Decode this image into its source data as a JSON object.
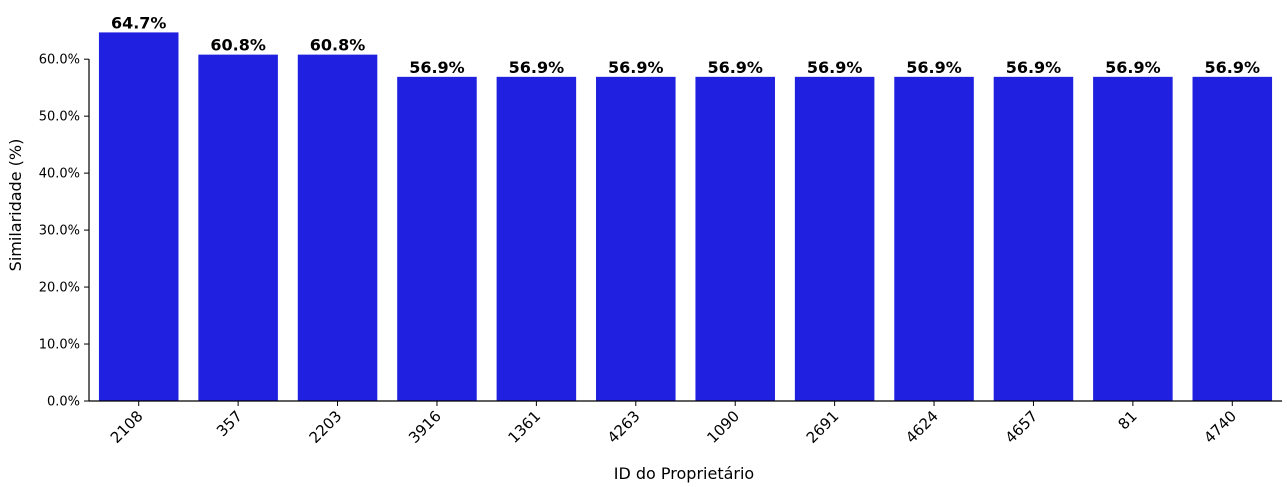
{
  "chart_data": {
    "type": "bar",
    "categories": [
      "2108",
      "357",
      "2203",
      "3916",
      "1361",
      "4263",
      "1090",
      "2691",
      "4624",
      "4657",
      "81",
      "4740"
    ],
    "values": [
      64.7,
      60.8,
      60.8,
      56.9,
      56.9,
      56.9,
      56.9,
      56.9,
      56.9,
      56.9,
      56.9,
      56.9
    ],
    "data_labels": [
      "64.7%",
      "60.8%",
      "60.8%",
      "56.9%",
      "56.9%",
      "56.9%",
      "56.9%",
      "56.9%",
      "56.9%",
      "56.9%",
      "56.9%",
      "56.9%"
    ],
    "xlabel": "ID do Proprietário",
    "ylabel": "Similaridade (%)",
    "ylim": [
      0,
      66
    ],
    "yticks": [
      0,
      10,
      20,
      30,
      40,
      50,
      60
    ],
    "ytick_labels": [
      "0.0%",
      "10.0%",
      "20.0%",
      "30.0%",
      "40.0%",
      "50.0%",
      "60.0%"
    ],
    "bar_color": "#2020e0",
    "grid": false,
    "legend": "none"
  }
}
